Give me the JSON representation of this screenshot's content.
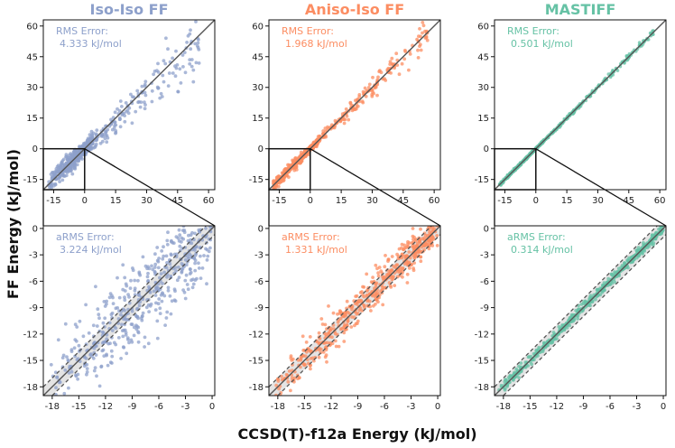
{
  "figure": {
    "ylabel": "FF Energy (kJ/mol)",
    "xlabel": "CCSD(T)-f12a Energy (kJ/mol)"
  },
  "chart_data": [
    {
      "type": "scatter",
      "panel": "top-left",
      "title": "Iso-Iso FF",
      "color": "#8da0cb",
      "annotation_label": "RMS Error:",
      "annotation_value": "4.333 kJ/mol",
      "xlim": [
        -20,
        63
      ],
      "ylim": [
        -20,
        63
      ],
      "xticks": [
        "-15",
        "0",
        "15",
        "30",
        "45",
        "60"
      ],
      "yticks": [
        "-15",
        "0",
        "15",
        "30",
        "45",
        "60"
      ],
      "spread": 4.3,
      "inset_box": {
        "x": [
          -20,
          0
        ],
        "y": [
          -20,
          0
        ]
      }
    },
    {
      "type": "scatter",
      "panel": "top-center",
      "title": "Aniso-Iso FF",
      "color": "#fc8d62",
      "annotation_label": "RMS Error:",
      "annotation_value": "1.968 kJ/mol",
      "xlim": [
        -20,
        63
      ],
      "ylim": [
        -20,
        63
      ],
      "xticks": [
        "-15",
        "0",
        "15",
        "30",
        "45",
        "60"
      ],
      "yticks": [
        "-15",
        "0",
        "15",
        "30",
        "45",
        "60"
      ],
      "spread": 2.0,
      "inset_box": {
        "x": [
          -20,
          0
        ],
        "y": [
          -20,
          0
        ]
      }
    },
    {
      "type": "scatter",
      "panel": "top-right",
      "title": "MASTIFF",
      "color": "#66c2a5",
      "annotation_label": "RMS Error:",
      "annotation_value": "0.501 kJ/mol",
      "xlim": [
        -20,
        63
      ],
      "ylim": [
        -20,
        63
      ],
      "xticks": [
        "-15",
        "0",
        "15",
        "30",
        "45",
        "60"
      ],
      "yticks": [
        "-15",
        "0",
        "15",
        "30",
        "45",
        "60"
      ],
      "spread": 0.5,
      "inset_box": {
        "x": [
          -20,
          0
        ],
        "y": [
          -20,
          0
        ]
      }
    },
    {
      "type": "scatter",
      "panel": "bottom-left",
      "color": "#8da0cb",
      "annotation_label": "aRMS Error:",
      "annotation_value": "3.224 kJ/mol",
      "xlim": [
        -19,
        0.3
      ],
      "ylim": [
        -19,
        0.3
      ],
      "xticks": [
        "-18",
        "-15",
        "-12",
        "-9",
        "-6",
        "-3",
        "0"
      ],
      "yticks": [
        "-18",
        "-15",
        "-12",
        "-9",
        "-6",
        "-3",
        "0"
      ],
      "band": 1,
      "spread": 3.2
    },
    {
      "type": "scatter",
      "panel": "bottom-center",
      "color": "#fc8d62",
      "annotation_label": "aRMS Error:",
      "annotation_value": "1.331 kJ/mol",
      "xlim": [
        -19,
        0.3
      ],
      "ylim": [
        -19,
        0.3
      ],
      "xticks": [
        "-18",
        "-15",
        "-12",
        "-9",
        "-6",
        "-3",
        "0"
      ],
      "yticks": [
        "-18",
        "-15",
        "-12",
        "-9",
        "-6",
        "-3",
        "0"
      ],
      "band": 1,
      "spread": 1.3
    },
    {
      "type": "scatter",
      "panel": "bottom-right",
      "color": "#66c2a5",
      "annotation_label": "aRMS Error:",
      "annotation_value": "0.314 kJ/mol",
      "xlim": [
        -19,
        0.3
      ],
      "ylim": [
        -19,
        0.3
      ],
      "xticks": [
        "-18",
        "-15",
        "-12",
        "-9",
        "-6",
        "-3",
        "0"
      ],
      "yticks": [
        "-18",
        "-15",
        "-12",
        "-9",
        "-6",
        "-3",
        "0"
      ],
      "band": 1,
      "spread": 0.35
    }
  ]
}
